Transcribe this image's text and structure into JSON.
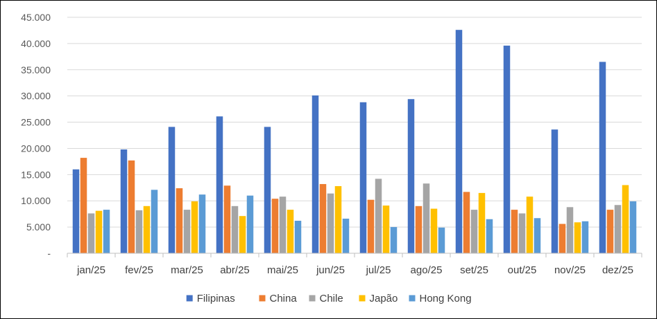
{
  "chart_data": {
    "type": "bar",
    "categories": [
      "jan/25",
      "fev/25",
      "mar/25",
      "abr/25",
      "mai/25",
      "jun/25",
      "jul/25",
      "ago/25",
      "set/25",
      "out/25",
      "nov/25",
      "dez/25"
    ],
    "series": [
      {
        "name": "Filipinas",
        "color": "#4472C4",
        "values": [
          16000,
          19800,
          24100,
          26100,
          24100,
          30100,
          28800,
          29400,
          42600,
          39600,
          23600,
          36500
        ]
      },
      {
        "name": "China",
        "color": "#ED7D31",
        "values": [
          18200,
          17700,
          12400,
          12900,
          10400,
          13200,
          10200,
          9000,
          11700,
          8300,
          5600,
          8300
        ]
      },
      {
        "name": "Chile",
        "color": "#A5A5A5",
        "values": [
          7600,
          8200,
          8300,
          9000,
          10800,
          11400,
          14200,
          13300,
          8300,
          7600,
          8800,
          9200
        ]
      },
      {
        "name": "Japão",
        "color": "#FFC000",
        "values": [
          8100,
          9000,
          9900,
          7100,
          8300,
          12800,
          9100,
          8500,
          11500,
          10800,
          5900,
          13000
        ]
      },
      {
        "name": "Hong Kong",
        "color": "#5B9BD5",
        "values": [
          8300,
          12100,
          11200,
          11000,
          6200,
          6600,
          5000,
          4900,
          6500,
          6700,
          6100,
          9900
        ]
      }
    ],
    "ylim": [
      0,
      45000
    ],
    "yticks": [
      0,
      5000,
      10000,
      15000,
      20000,
      25000,
      30000,
      35000,
      40000,
      45000
    ],
    "ytick_labels": [
      "-",
      "5.000",
      "10.000",
      "15.000",
      "20.000",
      "25.000",
      "30.000",
      "35.000",
      "40.000",
      "45.000"
    ],
    "grid": true,
    "legend_position": "bottom"
  }
}
